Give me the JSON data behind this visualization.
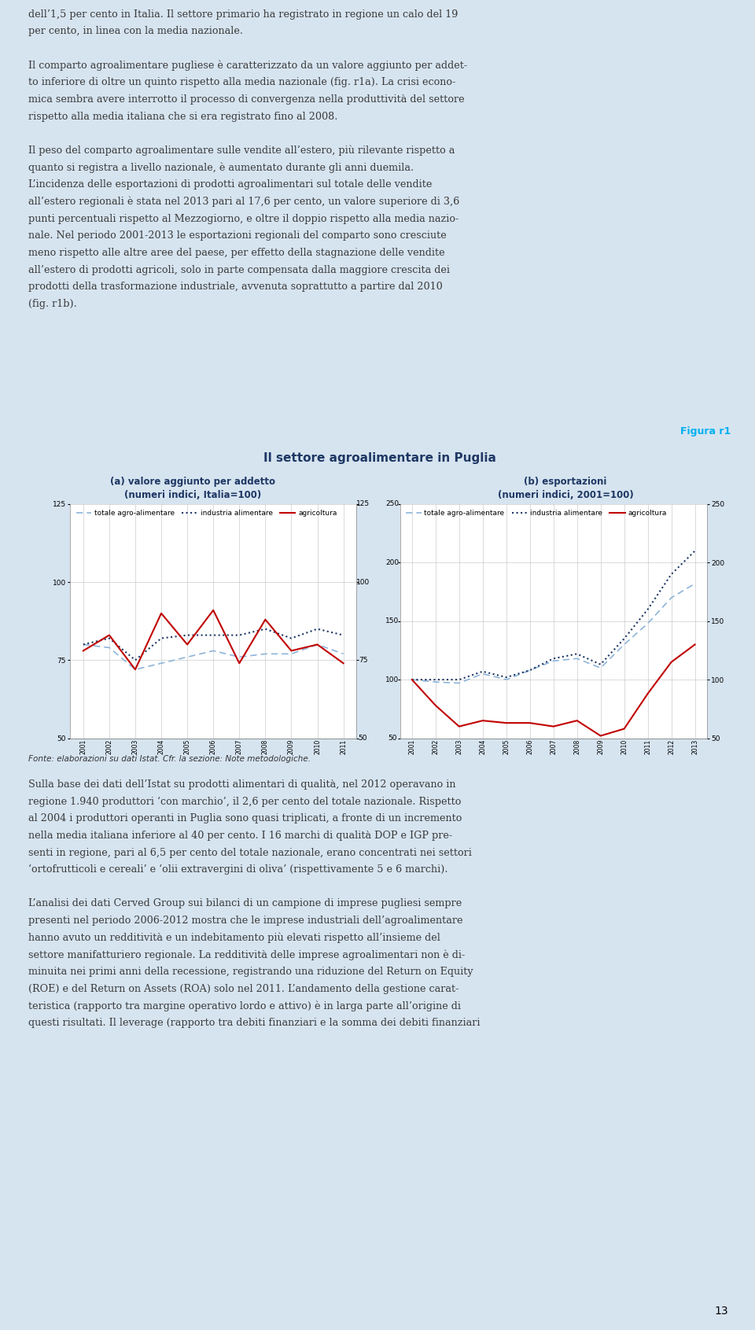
{
  "title": "Il settore agroalimentare in Puglia",
  "figura": "Figura r1",
  "subtitle_a": "(a) valore aggiunto per addetto\n(numeri indici, Italia=100)",
  "subtitle_b": "(b) esportazioni\n(numeri indici, 2001=100)",
  "fonte": "Fonte: elaborazioni su dati Istat. Cfr. la sezione: Note metodologiche.",
  "legend_labels": [
    "totale agro-alimentare",
    "industria alimentare",
    "agricoltura"
  ],
  "years_a": [
    2001,
    2002,
    2003,
    2004,
    2005,
    2006,
    2007,
    2008,
    2009,
    2010,
    2011
  ],
  "years_b": [
    2001,
    2002,
    2003,
    2004,
    2005,
    2006,
    2007,
    2008,
    2009,
    2010,
    2011,
    2012,
    2013
  ],
  "panel_a": {
    "totale": [
      80,
      79,
      72,
      74,
      76,
      78,
      76,
      77,
      77,
      80,
      77
    ],
    "industria": [
      80,
      82,
      75,
      82,
      83,
      83,
      83,
      85,
      82,
      85,
      83
    ],
    "agricoltura": [
      78,
      83,
      72,
      90,
      80,
      91,
      74,
      88,
      78,
      80,
      74
    ]
  },
  "panel_b": {
    "totale": [
      100,
      98,
      97,
      105,
      100,
      108,
      116,
      118,
      110,
      130,
      148,
      170,
      182
    ],
    "industria": [
      100,
      100,
      100,
      107,
      102,
      108,
      118,
      122,
      113,
      135,
      160,
      190,
      210
    ],
    "agricoltura": [
      100,
      78,
      60,
      65,
      63,
      63,
      60,
      65,
      52,
      58,
      88,
      115,
      130
    ]
  },
  "ylim_a": [
    50,
    125
  ],
  "yticks_a": [
    50,
    75,
    100,
    125
  ],
  "ylim_b": [
    50,
    250
  ],
  "yticks_b": [
    50,
    100,
    150,
    200,
    250
  ],
  "color_totale": "#8db4d8",
  "color_industria": "#1f3864",
  "color_agricoltura": "#c00000",
  "bg_page": "#d6e4f0",
  "bg_chart": "#dce6f1",
  "bg_title_bar": "#c5d9f1",
  "border_color": "#1f5c7a",
  "title_color": "#1f3864",
  "figura_color": "#00b0f0",
  "text_color": "#3a3a3a",
  "fonte_color": "#333333",
  "top_lines": [
    "dell’1,5 per cento in Italia. Il settore primario ha registrato in regione un calo del 19",
    "per cento, in linea con la media nazionale.",
    "",
    "Il comparto agroalimentare pugliese è caratterizzato da un valore aggiunto per addet-",
    "to inferiore di oltre un quinto rispetto alla media nazionale (fig. r1a). La crisi econo-",
    "mica sembra avere interrotto il processo di convergenza nella produttività del settore",
    "rispetto alla media italiana che si era registrato fino al 2008.",
    "",
    "Il peso del comparto agroalimentare sulle vendite all’estero, più rilevante rispetto a",
    "quanto si registra a livello nazionale, è aumentato durante gli anni duemila.",
    "L’incidenza delle esportazioni di prodotti agroalimentari sul totale delle vendite",
    "all’estero regionali è stata nel 2013 pari al 17,6 per cento, un valore superiore di 3,6",
    "punti percentuali rispetto al Mezzogiorno, e oltre il doppio rispetto alla media nazio-",
    "nale. Nel periodo 2001-2013 le esportazioni regionali del comparto sono cresciute",
    "meno rispetto alle altre aree del paese, per effetto della stagnazione delle vendite",
    "all’estero di prodotti agricoli, solo in parte compensata dalla maggiore crescita dei",
    "prodotti della trasformazione industriale, avvenuta soprattutto a partire dal 2010",
    "(fig. r1b)."
  ],
  "bottom_lines": [
    "Sulla base dei dati dell’Istat su prodotti alimentari di qualità, nel 2012 operavano in",
    "regione 1.940 produttori ‘con marchio’, il 2,6 per cento del totale nazionale. Rispetto",
    "al 2004 i produttori operanti in Puglia sono quasi triplicati, a fronte di un incremento",
    "nella media italiana inferiore al 40 per cento. I 16 marchi di qualità DOP e IGP pre-",
    "senti in regione, pari al 6,5 per cento del totale nazionale, erano concentrati nei settori",
    "‘ortofrutticoli e cereali’ e ‘olii extravergini di oliva’ (rispettivamente 5 e 6 marchi).",
    "",
    "L’analisi dei dati Cerved Group sui bilanci di un campione di imprese pugliesi sempre",
    "presenti nel periodo 2006-2012 mostra che le imprese industriali dell’agroalimentare",
    "hanno avuto un redditività e un indebitamento più elevati rispetto all’insieme del",
    "settore manifatturiero regionale. La redditività delle imprese agroalimentari non è di-",
    "minuita nei primi anni della recessione, registrando una riduzione del Return on Equity",
    "(ROE) e del Return on Assets (ROA) solo nel 2011. L’andamento della gestione carat-",
    "teristica (rapporto tra margine operativo lordo e attivo) è in larga parte all’origine di",
    "questi risultati. Il leverage (rapporto tra debiti finanziari e la somma dei debiti finanziari"
  ]
}
